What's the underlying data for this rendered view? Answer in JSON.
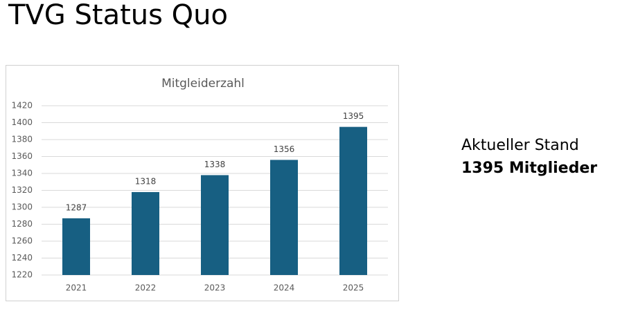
{
  "title": "TVG Status Quo",
  "chart_data": {
    "type": "bar",
    "title": "Mitgleiderzahl",
    "categories": [
      "2021",
      "2022",
      "2023",
      "2024",
      "2025"
    ],
    "values": [
      1287,
      1318,
      1338,
      1356,
      1395
    ],
    "color": "#175f82",
    "ylim": [
      1220,
      1420
    ],
    "yticks": [
      1220,
      1240,
      1260,
      1280,
      1300,
      1320,
      1340,
      1360,
      1380,
      1400,
      1420
    ],
    "grid": true,
    "data_labels": true
  },
  "side_text": {
    "line1": "Aktueller Stand",
    "line2": "1395 Mitglieder"
  }
}
